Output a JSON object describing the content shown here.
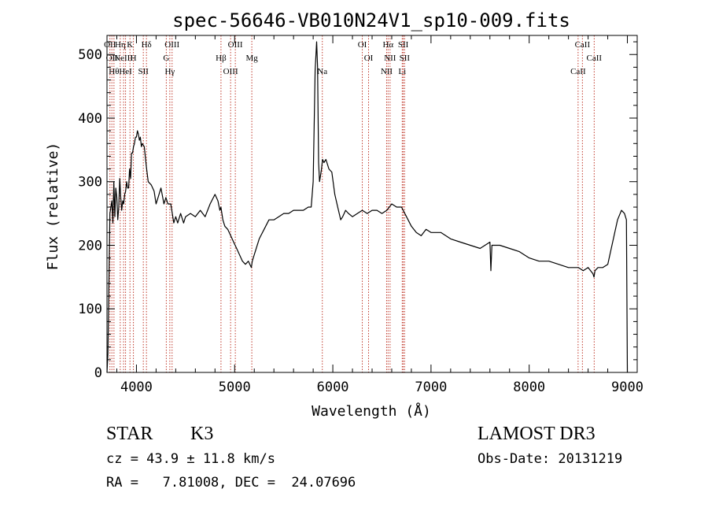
{
  "chart_data": {
    "type": "line",
    "title": "spec-56646-VB010N24V1_sp10-009.fits",
    "xlabel": "Wavelength (Å)",
    "ylabel": "Flux (relative)",
    "xlim": [
      3700,
      9100
    ],
    "ylim": [
      0,
      530
    ],
    "xticks": [
      4000,
      5000,
      6000,
      7000,
      8000,
      9000
    ],
    "yticks": [
      0,
      100,
      200,
      300,
      400,
      500
    ],
    "grid": false,
    "series": [
      {
        "x": [
          3700,
          3710,
          3730,
          3750,
          3760,
          3770,
          3780,
          3790,
          3800,
          3810,
          3820,
          3830,
          3840,
          3850,
          3860,
          3870,
          3880,
          3890,
          3900,
          3910,
          3920,
          3930,
          3940,
          3950,
          3960,
          3970,
          3980,
          3990,
          4000,
          4010,
          4020,
          4030,
          4040,
          4050,
          4060,
          4080,
          4100,
          4120,
          4150,
          4180,
          4200,
          4220,
          4250,
          4280,
          4300,
          4320,
          4350,
          4380,
          4400,
          4420,
          4450,
          4480,
          4500,
          4550,
          4600,
          4650,
          4700,
          4750,
          4800,
          4830,
          4850,
          4860,
          4880,
          4900,
          4930,
          4960,
          4990,
          5020,
          5050,
          5080,
          5110,
          5140,
          5170,
          5180,
          5200,
          5250,
          5300,
          5350,
          5400,
          5450,
          5500,
          5550,
          5600,
          5650,
          5700,
          5750,
          5780,
          5800,
          5820,
          5835,
          5845,
          5855,
          5865,
          5875,
          5885,
          5895,
          5910,
          5930,
          5960,
          5990,
          6020,
          6050,
          6080,
          6100,
          6130,
          6160,
          6200,
          6250,
          6300,
          6350,
          6400,
          6450,
          6500,
          6550,
          6600,
          6650,
          6700,
          6750,
          6800,
          6850,
          6900,
          6950,
          7000,
          7100,
          7200,
          7300,
          7400,
          7500,
          7600,
          7610,
          7620,
          7700,
          7800,
          7900,
          8000,
          8100,
          8200,
          8300,
          8400,
          8500,
          8550,
          8600,
          8650,
          8660,
          8670,
          8700,
          8750,
          8800,
          8850,
          8900,
          8940,
          8970,
          8990,
          9000
        ],
        "values": [
          0,
          30,
          250,
          270,
          235,
          300,
          245,
          290,
          275,
          240,
          260,
          305,
          275,
          255,
          270,
          265,
          280,
          285,
          300,
          290,
          290,
          320,
          305,
          345,
          345,
          355,
          360,
          370,
          370,
          380,
          375,
          365,
          370,
          355,
          360,
          355,
          325,
          300,
          295,
          285,
          265,
          275,
          290,
          265,
          275,
          265,
          265,
          235,
          245,
          235,
          250,
          235,
          245,
          250,
          245,
          255,
          245,
          265,
          280,
          270,
          255,
          260,
          240,
          230,
          225,
          215,
          205,
          195,
          185,
          175,
          170,
          175,
          165,
          175,
          185,
          210,
          225,
          240,
          240,
          245,
          250,
          250,
          255,
          255,
          255,
          260,
          260,
          300,
          475,
          520,
          480,
          330,
          300,
          310,
          320,
          335,
          330,
          335,
          320,
          315,
          280,
          260,
          240,
          245,
          255,
          250,
          245,
          250,
          255,
          250,
          255,
          255,
          250,
          255,
          265,
          260,
          260,
          245,
          230,
          220,
          215,
          225,
          220,
          220,
          210,
          205,
          200,
          195,
          205,
          160,
          200,
          200,
          195,
          190,
          180,
          175,
          175,
          170,
          165,
          165,
          160,
          165,
          155,
          150,
          160,
          165,
          165,
          170,
          205,
          240,
          255,
          250,
          240,
          0
        ]
      }
    ],
    "lines": [
      {
        "x": 3730,
        "labels": [
          "OII"
        ]
      },
      {
        "x": 3750,
        "labels": [
          "OII"
        ]
      },
      {
        "x": 3771,
        "labels": [
          "Hθ"
        ]
      },
      {
        "x": 3835,
        "labels": [
          "Hη"
        ]
      },
      {
        "x": 3869,
        "labels": [
          "NeIII"
        ]
      },
      {
        "x": 3889,
        "labels": [
          "HeI"
        ]
      },
      {
        "x": 3934,
        "labels": [
          "K"
        ]
      },
      {
        "x": 3969,
        "labels": [
          "H"
        ]
      },
      {
        "x": 4070,
        "labels": [
          "SII"
        ]
      },
      {
        "x": 4102,
        "labels": [
          "Hδ"
        ]
      },
      {
        "x": 4304,
        "labels": [
          "G"
        ]
      },
      {
        "x": 4340,
        "labels": [
          "Hγ"
        ]
      },
      {
        "x": 4363,
        "labels": [
          "OIII"
        ]
      },
      {
        "x": 4861,
        "labels": [
          "Hβ"
        ]
      },
      {
        "x": 4959,
        "labels": [
          "OIII"
        ]
      },
      {
        "x": 5007,
        "labels": [
          "OIII"
        ]
      },
      {
        "x": 5175,
        "labels": [
          "Mg"
        ]
      },
      {
        "x": 5893,
        "labels": [
          "Na"
        ]
      },
      {
        "x": 6300,
        "labels": [
          "OI"
        ]
      },
      {
        "x": 6364,
        "labels": [
          "OI"
        ]
      },
      {
        "x": 6548,
        "labels": [
          "NII"
        ]
      },
      {
        "x": 6563,
        "labels": [
          "Hα"
        ]
      },
      {
        "x": 6583,
        "labels": [
          "NII"
        ]
      },
      {
        "x": 6707,
        "labels": [
          "Li"
        ]
      },
      {
        "x": 6717,
        "labels": [
          "SII"
        ]
      },
      {
        "x": 6731,
        "labels": [
          "SII"
        ]
      },
      {
        "x": 8498,
        "labels": [
          "CaII"
        ]
      },
      {
        "x": 8542,
        "labels": [
          "CaII"
        ]
      },
      {
        "x": 8662,
        "labels": [
          "CaII"
        ]
      }
    ]
  },
  "footer": {
    "class_label": "STAR",
    "subclass_label": "K3",
    "survey": "LAMOST DR3",
    "cz_line": "cz = 43.9 ± 11.8 km/s",
    "obs_date": "Obs-Date: 20131219",
    "radec_line": "RA =   7.81008, DEC =  24.07696"
  }
}
